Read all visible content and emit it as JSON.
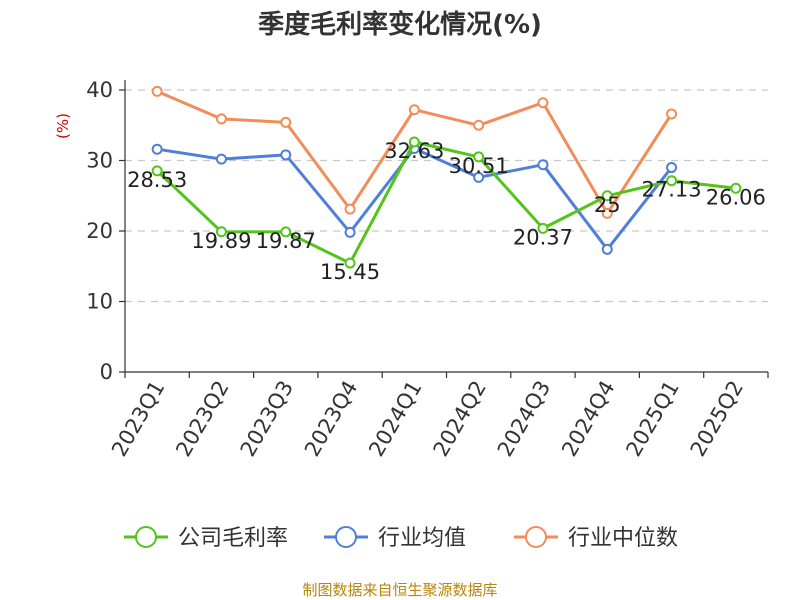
{
  "chart_data": {
    "type": "line",
    "title": "季度毛利率变化情况(%)",
    "ylabel": "(%)",
    "xlabel": "",
    "ylim": [
      0,
      40
    ],
    "yticks": [
      0,
      10,
      20,
      30,
      40
    ],
    "grid": true,
    "legend_position": "bottom",
    "categories": [
      "2023Q1",
      "2023Q2",
      "2023Q3",
      "2023Q4",
      "2024Q1",
      "2024Q2",
      "2024Q3",
      "2024Q4",
      "2025Q1",
      "2025Q2"
    ],
    "series": [
      {
        "name": "公司毛利率",
        "color": "#52c41a",
        "values": [
          28.53,
          19.89,
          19.87,
          15.45,
          32.63,
          30.51,
          20.37,
          25,
          27.13,
          26.06
        ],
        "data_labels": [
          "28.53",
          "19.89",
          "19.87",
          "15.45",
          "32.63",
          "30.51",
          "20.37",
          "25",
          "27.13",
          "26.06"
        ]
      },
      {
        "name": "行业均值",
        "color": "#4f7fd9",
        "values": [
          31.6,
          30.2,
          30.8,
          19.8,
          31.7,
          27.6,
          29.4,
          17.4,
          29.0,
          null
        ]
      },
      {
        "name": "行业中位数",
        "color": "#f28c5a",
        "values": [
          39.8,
          35.9,
          35.4,
          23.1,
          37.2,
          35.0,
          38.2,
          22.5,
          36.6,
          null
        ]
      }
    ]
  },
  "footer": {
    "source": "制图数据来自恒生聚源数据库"
  }
}
